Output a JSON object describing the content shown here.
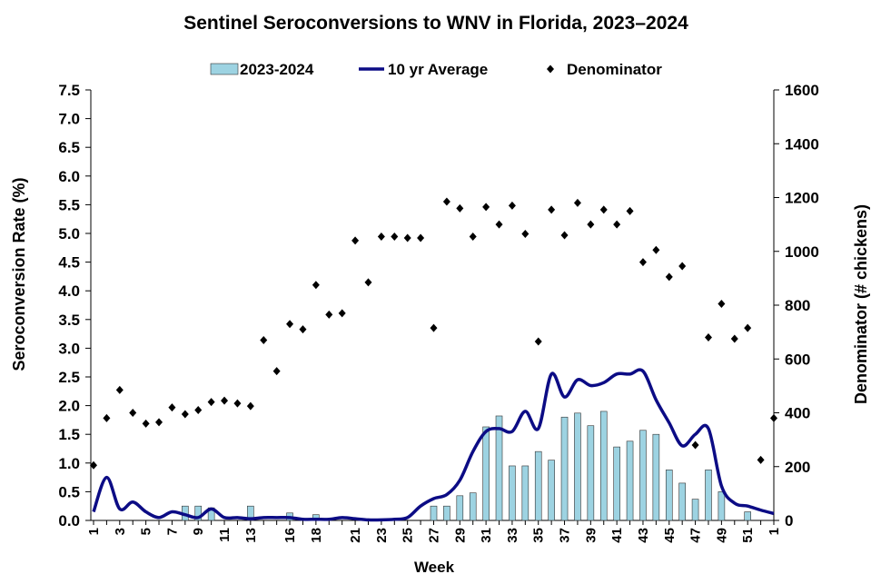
{
  "chart_data": {
    "type": "combo",
    "title": "Sentinel Seroconversions to WNV in Florida, 2023–2024",
    "x_label": "Week",
    "y_label": "Seroconversion Rate (%)",
    "y2_label": "Denominator  (# chickens)",
    "categories": [
      "1",
      null,
      "3",
      null,
      "5",
      null,
      "7",
      null,
      "9",
      null,
      "11",
      null,
      "13",
      null,
      null,
      "16",
      null,
      "18",
      null,
      null,
      "21",
      null,
      "23",
      null,
      "25",
      null,
      "27",
      null,
      "29",
      null,
      "31",
      null,
      "33",
      null,
      "35",
      null,
      "37",
      null,
      "39",
      null,
      "41",
      null,
      "43",
      null,
      "45",
      null,
      "47",
      null,
      "49",
      null,
      "51",
      null,
      "1"
    ],
    "series": [
      {
        "name": "2023-2024",
        "kind": "bar",
        "color": "#9dd3e2",
        "values": [
          0,
          0,
          0,
          0,
          0,
          0,
          0,
          0.25,
          0.25,
          0.22,
          0,
          0,
          0.25,
          0,
          0,
          0.13,
          0,
          0.1,
          0,
          0,
          0,
          0,
          0,
          0,
          0,
          0,
          0.25,
          0.25,
          0.43,
          0.48,
          1.63,
          1.82,
          0.95,
          0.95,
          1.2,
          1.05,
          1.8,
          1.87,
          1.65,
          1.9,
          1.28,
          1.38,
          1.57,
          1.5,
          0.88,
          0.65,
          0.37,
          0.88,
          0.5,
          0,
          0.15,
          0,
          0
        ]
      },
      {
        "name": "10 yr Average",
        "kind": "line",
        "color": "#0c0c85",
        "values": [
          0.15,
          0.75,
          0.2,
          0.32,
          0.15,
          0.05,
          0.15,
          0.1,
          0.05,
          0.2,
          0.05,
          0.05,
          0.03,
          0.05,
          0.05,
          0.05,
          0.02,
          0.02,
          0.02,
          0.05,
          0.03,
          0.01,
          0.01,
          0.02,
          0.05,
          0.25,
          0.38,
          0.45,
          0.7,
          1.2,
          1.55,
          1.6,
          1.55,
          1.9,
          1.6,
          2.55,
          2.15,
          2.45,
          2.35,
          2.4,
          2.55,
          2.55,
          2.6,
          2.1,
          1.7,
          1.3,
          1.5,
          1.6,
          0.6,
          0.3,
          0.25,
          0.18,
          0.12
        ]
      },
      {
        "name": "Denominator",
        "kind": "scatter",
        "axis": "y2",
        "color": "#000000",
        "values": [
          205,
          380,
          485,
          400,
          360,
          365,
          420,
          395,
          410,
          440,
          445,
          435,
          425,
          670,
          555,
          730,
          710,
          875,
          765,
          770,
          1040,
          885,
          1055,
          1055,
          1050,
          1050,
          715,
          1185,
          1160,
          1055,
          1165,
          1100,
          1170,
          1065,
          665,
          1155,
          1060,
          1180,
          1100,
          1155,
          1100,
          1150,
          960,
          1005,
          905,
          945,
          280,
          680,
          805,
          675,
          715,
          225,
          380
        ]
      }
    ],
    "ylim": [
      0,
      7.5
    ],
    "yticks": [
      {
        "value": 0,
        "label": "0.0"
      },
      {
        "value": 0.5,
        "label": "0.5"
      },
      {
        "value": 1,
        "label": "1.0"
      },
      {
        "value": 1.5,
        "label": "1.5"
      },
      {
        "value": 2,
        "label": "2.0"
      },
      {
        "value": 2.5,
        "label": "2.5"
      },
      {
        "value": 3,
        "label": "3.0"
      },
      {
        "value": 3.5,
        "label": "3.5"
      },
      {
        "value": 4,
        "label": "4.0"
      },
      {
        "value": 4.5,
        "label": "4.5"
      },
      {
        "value": 5,
        "label": "5.0"
      },
      {
        "value": 5.5,
        "label": "5.5"
      },
      {
        "value": 6,
        "label": "6.0"
      },
      {
        "value": 6.5,
        "label": "6.5"
      },
      {
        "value": 7,
        "label": "7.0"
      },
      {
        "value": 7.5,
        "label": "7.5"
      }
    ],
    "y2lim": [
      0,
      1600
    ],
    "y2ticks": [
      0,
      200,
      400,
      600,
      800,
      1000,
      1200,
      1400,
      1600
    ],
    "legend": "top"
  }
}
